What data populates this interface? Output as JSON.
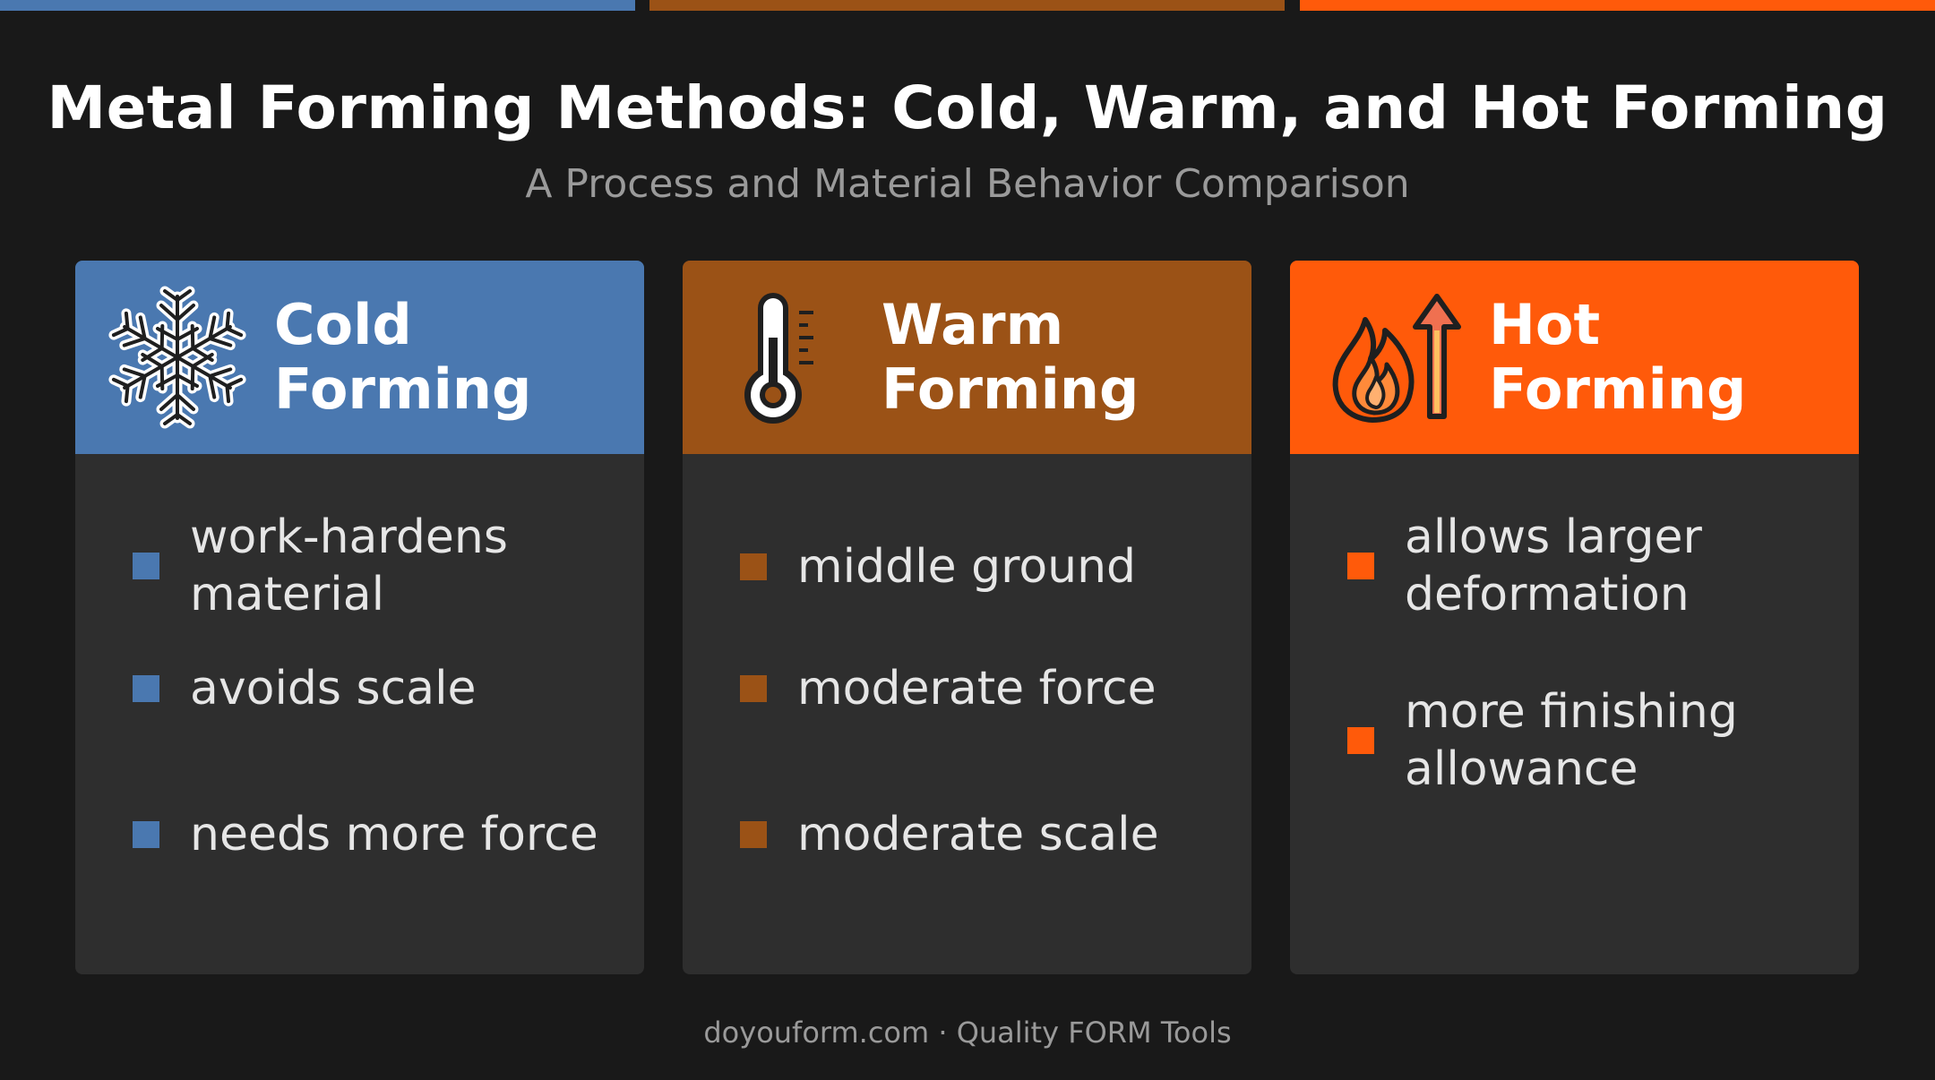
{
  "colors": {
    "background": "#191919",
    "card_body": "#2e2e2e",
    "cold": "#4a78b0",
    "warm": "#9b5216",
    "hot": "#ff5a0a"
  },
  "title": "Metal Forming Methods: Cold, Warm, and Hot Forming",
  "subtitle": "A Process and Material Behavior Comparison",
  "cards": [
    {
      "title_line1": "Cold",
      "title_line2": "Forming",
      "icon": "snowflake-icon",
      "items": [
        "work-hardens material",
        "avoids scale",
        "needs more force"
      ]
    },
    {
      "title_line1": "Warm",
      "title_line2": "Forming",
      "icon": "thermometer-icon",
      "items": [
        "middle ground",
        "moderate force",
        "moderate scale"
      ]
    },
    {
      "title_line1": "Hot",
      "title_line2": "Forming",
      "icon": "flame-arrow-icon",
      "items": [
        "allows larger deformation",
        "more finishing allowance"
      ]
    }
  ],
  "footer": "doyouform.com · Quality FORM Tools"
}
